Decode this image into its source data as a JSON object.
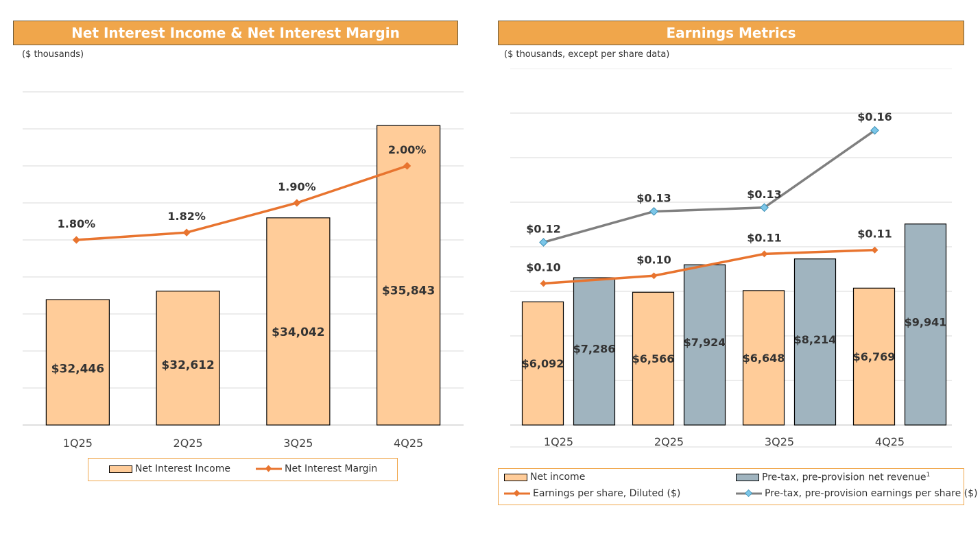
{
  "left": {
    "title": "Net Interest Income & Net Interest Margin",
    "subtitle": "($ thousands)",
    "legend": {
      "bar_label": "Net Interest Income",
      "line_label": "Net Interest Margin"
    }
  },
  "right": {
    "title": "Earnings Metrics",
    "subtitle": "($ thousands, except per share data)",
    "legend": {
      "net_income_label": "Net income",
      "pppnr_label": "Pre-tax, pre-provision net revenue",
      "pppnr_sup": "1",
      "eps_label": "Earnings per share, Diluted ($)",
      "ppeps_label": "Pre-tax, pre-provision earnings per share ($)"
    }
  },
  "colors": {
    "title_bg": "#F0A64B",
    "bar_orange": "#FFCC99",
    "bar_gray": "#A0B4BF",
    "line_orange": "#E8742F",
    "line_gray": "#7F7F7F",
    "marker_blue": "#7CC6E8"
  },
  "chart_data": [
    {
      "type": "bar",
      "title": "Net Interest Income & Net Interest Margin",
      "subtitle": "($ thousands)",
      "categories": [
        "1Q25",
        "2Q25",
        "3Q25",
        "4Q25"
      ],
      "series": [
        {
          "name": "Net Interest Income",
          "type": "bar",
          "values": [
            32446,
            32612,
            34042,
            35843
          ],
          "labels": [
            "$32,446",
            "$32,612",
            "$34,042",
            "$35,843"
          ]
        },
        {
          "name": "Net Interest Margin",
          "type": "line",
          "values": [
            1.8,
            1.82,
            1.9,
            2.0
          ],
          "labels": [
            "1.80%",
            "1.82%",
            "1.90%",
            "2.00%"
          ]
        }
      ],
      "grid": true,
      "legend": "bottom"
    },
    {
      "type": "bar",
      "title": "Earnings Metrics",
      "subtitle": "($ thousands, except per share data)",
      "categories": [
        "1Q25",
        "2Q25",
        "3Q25",
        "4Q25"
      ],
      "series": [
        {
          "name": "Net income",
          "type": "bar",
          "values": [
            6092,
            6566,
            6648,
            6769
          ],
          "labels": [
            "$6,092",
            "$6,566",
            "$6,648",
            "$6,769"
          ]
        },
        {
          "name": "Pre-tax, pre-provision net revenue",
          "type": "bar",
          "values": [
            7286,
            7924,
            8214,
            9941
          ],
          "labels": [
            "$7,286",
            "$7,924",
            "$8,214",
            "$9,941"
          ]
        },
        {
          "name": "Earnings per share, Diluted ($)",
          "type": "line",
          "values": [
            0.1,
            0.1,
            0.11,
            0.11
          ],
          "labels": [
            "$0.10",
            "$0.10",
            "$0.11",
            "$0.11"
          ]
        },
        {
          "name": "Pre-tax, pre-provision earnings per share ($)",
          "type": "line",
          "values": [
            0.12,
            0.13,
            0.13,
            0.16
          ],
          "labels": [
            "$0.12",
            "$0.13",
            "$0.13",
            "$0.16"
          ]
        }
      ],
      "grid": true,
      "legend": "bottom"
    }
  ]
}
